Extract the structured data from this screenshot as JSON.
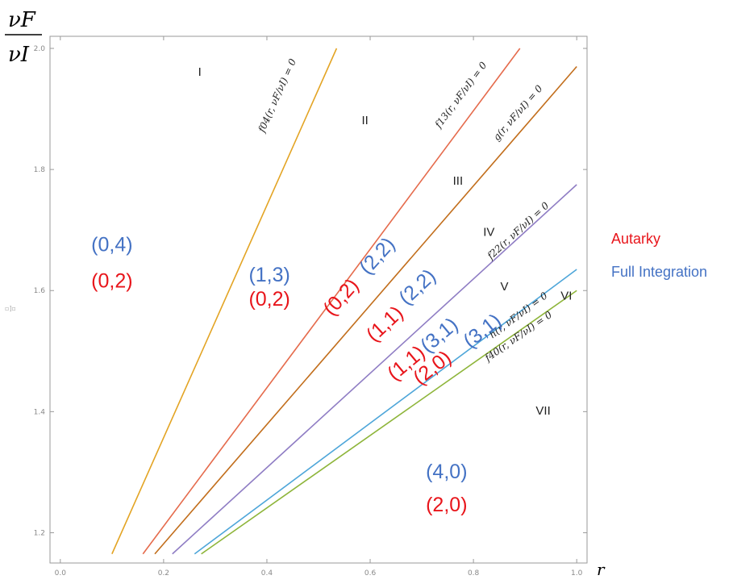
{
  "chart_data": {
    "type": "line",
    "xlabel": "r",
    "ylabel_num": "νF",
    "ylabel_den": "νI",
    "xlim": [
      -0.02,
      1.02
    ],
    "ylim": [
      1.15,
      2.02
    ],
    "x_ticks": [
      {
        "v": 0.0,
        "label": "0.0"
      },
      {
        "v": 0.2,
        "label": "0.2"
      },
      {
        "v": 0.4,
        "label": "0.4"
      },
      {
        "v": 0.6,
        "label": "0.6"
      },
      {
        "v": 0.8,
        "label": "0.8"
      },
      {
        "v": 1.0,
        "label": "1.0"
      }
    ],
    "y_ticks": [
      {
        "v": 1.2,
        "label": "1.2"
      },
      {
        "v": 1.4,
        "label": "1.4"
      },
      {
        "v": 1.6,
        "label": "1.6"
      },
      {
        "v": 1.8,
        "label": "1.8"
      },
      {
        "v": 2.0,
        "label": "2.0"
      }
    ],
    "series": [
      {
        "key": "f04",
        "label": "f04(r, νF/νI) = 0",
        "color": "#e3a424",
        "x": [
          0.1,
          0.535
        ],
        "y": [
          1.165,
          2.0
        ]
      },
      {
        "key": "f13",
        "label": "f13(r, νF/νI) = 0",
        "color": "#e56b4c",
        "x": [
          0.16,
          0.89
        ],
        "y": [
          1.165,
          2.0
        ]
      },
      {
        "key": "g",
        "label": "g(r, νF/νI) = 0",
        "color": "#c26e1c",
        "x": [
          0.183,
          1.0
        ],
        "y": [
          1.165,
          1.97
        ]
      },
      {
        "key": "f22",
        "label": "f22(r, νF/νI) = 0",
        "color": "#8f7dc4",
        "x": [
          0.217,
          1.0
        ],
        "y": [
          1.165,
          1.775
        ]
      },
      {
        "key": "h",
        "label": "h(r, νF/νI) = 0",
        "color": "#4ea6d9",
        "x": [
          0.26,
          1.0
        ],
        "y": [
          1.165,
          1.635
        ]
      },
      {
        "key": "f40",
        "label": "f40(r, νF/νI) = 0",
        "color": "#8eb53a",
        "x": [
          0.273,
          1.0
        ],
        "y": [
          1.165,
          1.6
        ]
      }
    ],
    "regions": [
      {
        "label": "I",
        "x": 0.27,
        "y": 1.955
      },
      {
        "label": "II",
        "x": 0.59,
        "y": 1.875
      },
      {
        "label": "III",
        "x": 0.77,
        "y": 1.775
      },
      {
        "label": "IV",
        "x": 0.83,
        "y": 1.69
      },
      {
        "label": "V",
        "x": 0.86,
        "y": 1.6
      },
      {
        "label": "VI",
        "x": 0.98,
        "y": 1.585
      },
      {
        "label": "VII",
        "x": 0.935,
        "y": 1.395
      }
    ],
    "annotations": [
      {
        "text": "(0,4)",
        "scheme": "full",
        "x": 0.1,
        "y": 1.665,
        "angle": 0
      },
      {
        "text": "(0,2)",
        "scheme": "autarky",
        "x": 0.1,
        "y": 1.605,
        "angle": 0
      },
      {
        "text": "(1,3)",
        "scheme": "full",
        "x": 0.405,
        "y": 1.615,
        "angle": 0
      },
      {
        "text": "(0,2)",
        "scheme": "autarky",
        "x": 0.405,
        "y": 1.575,
        "angle": 0
      },
      {
        "text": "(0,2)",
        "scheme": "autarky",
        "x": 0.553,
        "y": 1.582,
        "angle": -48
      },
      {
        "text": "(2,2)",
        "scheme": "full",
        "x": 0.623,
        "y": 1.65,
        "angle": -48
      },
      {
        "text": "(1,1)",
        "scheme": "autarky",
        "x": 0.637,
        "y": 1.537,
        "angle": -43
      },
      {
        "text": "(2,2)",
        "scheme": "full",
        "x": 0.7,
        "y": 1.598,
        "angle": -43
      },
      {
        "text": "(1,1)",
        "scheme": "autarky",
        "x": 0.678,
        "y": 1.472,
        "angle": -40
      },
      {
        "text": "(3,1)",
        "scheme": "full",
        "x": 0.742,
        "y": 1.518,
        "angle": -40
      },
      {
        "text": "(2,0)",
        "scheme": "autarky",
        "x": 0.728,
        "y": 1.464,
        "angle": -38
      },
      {
        "text": "(3,1)",
        "scheme": "full",
        "x": 0.825,
        "y": 1.525,
        "angle": -38
      },
      {
        "text": "(4,0)",
        "scheme": "full",
        "x": 0.748,
        "y": 1.29,
        "angle": 0
      },
      {
        "text": "(2,0)",
        "scheme": "autarky",
        "x": 0.748,
        "y": 1.235,
        "angle": 0
      }
    ],
    "legend": [
      {
        "scheme": "autarky",
        "label": "Autarky",
        "color": "#e8151b"
      },
      {
        "scheme": "full",
        "label": "Full Integration",
        "color": "#4472c4"
      }
    ],
    "stray_glyph": "▫]▫"
  }
}
